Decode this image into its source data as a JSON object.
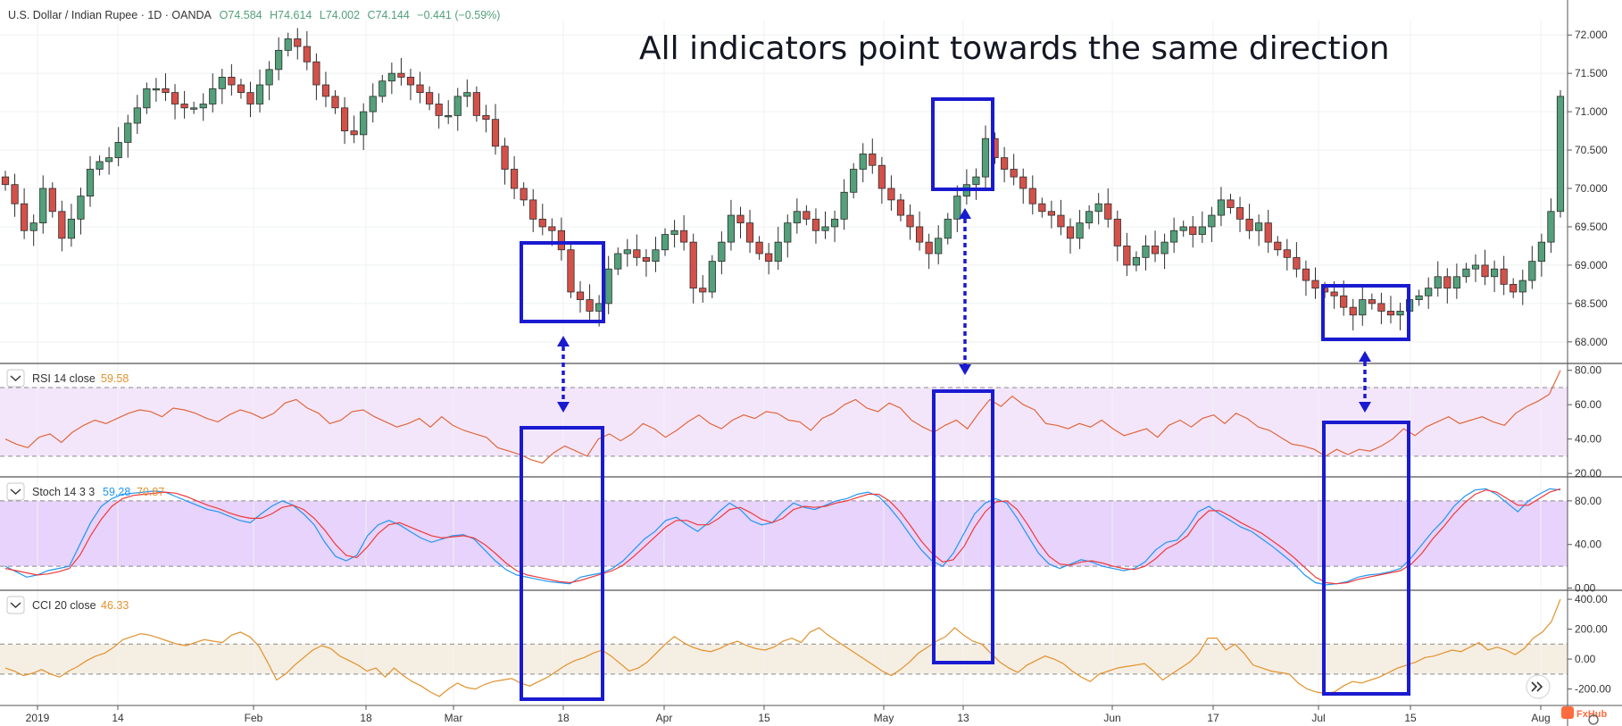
{
  "header": {
    "symbol": "U.S. Dollar / Indian Rupee · 1D · OANDA",
    "o": "O74.584",
    "h": "H74.614",
    "l": "L74.002",
    "c": "C74.144",
    "change": "−0.441 (−0.59%)"
  },
  "annotation": "All indicators point towards the same direction",
  "brand": "FxHub",
  "icons": {
    "scroll": "fast-forward-icon",
    "collapse": "chevron-down-icon",
    "settings": "gear-icon"
  },
  "colors": {
    "up": "#53a07a",
    "down": "#d4514a",
    "highlight": "#1a1ad0",
    "rsi": "#e0673a",
    "stoch_k": "#2196f3",
    "stoch_d": "#f0393a",
    "cci": "#e2922c",
    "rsi_band": "#f3e6fb",
    "stoch_band": "#e7d3fb",
    "cci_band": "#f5eee3"
  },
  "chart_data": [
    {
      "type": "candlestick",
      "title": "U.S. Dollar / Indian Rupee · 1D · OANDA",
      "y_ticks": [
        "72.000",
        "71.500",
        "71.000",
        "70.500",
        "70.000",
        "69.500",
        "69.000",
        "68.500",
        "68.000"
      ],
      "ylim": [
        67.8,
        72.2
      ],
      "x_ticks": [
        "2019",
        "14",
        "Feb",
        "18",
        "Mar",
        "18",
        "Apr",
        "15",
        "May",
        "13",
        "Jun",
        "17",
        "Jul",
        "15",
        "Aug"
      ],
      "grid": true,
      "close_series": [
        70.05,
        69.8,
        69.45,
        69.55,
        70.0,
        69.7,
        69.35,
        69.6,
        69.9,
        70.25,
        70.35,
        70.4,
        70.6,
        70.85,
        71.05,
        71.3,
        71.3,
        71.25,
        71.1,
        71.05,
        71.05,
        71.1,
        71.3,
        71.45,
        71.35,
        71.25,
        71.1,
        71.35,
        71.55,
        71.8,
        71.95,
        71.85,
        71.65,
        71.35,
        71.2,
        71.05,
        70.75,
        70.7,
        71.0,
        71.2,
        71.4,
        71.5,
        71.45,
        71.35,
        71.25,
        71.1,
        70.95,
        70.95,
        71.2,
        71.25,
        70.95,
        70.9,
        70.55,
        70.25,
        70.0,
        69.85,
        69.6,
        69.5,
        69.45,
        69.2,
        68.65,
        68.55,
        68.4,
        68.5,
        68.95,
        69.15,
        69.2,
        69.1,
        69.05,
        69.2,
        69.4,
        69.45,
        69.3,
        68.7,
        68.65,
        69.05,
        69.3,
        69.65,
        69.55,
        69.3,
        69.15,
        69.05,
        69.3,
        69.55,
        69.7,
        69.6,
        69.45,
        69.5,
        69.6,
        69.95,
        70.25,
        70.45,
        70.3,
        70.0,
        69.85,
        69.65,
        69.5,
        69.3,
        69.15,
        69.35,
        69.6,
        69.9,
        70.05,
        70.15,
        70.65,
        70.4,
        70.25,
        70.15,
        70.0,
        69.8,
        69.7,
        69.65,
        69.5,
        69.35,
        69.55,
        69.7,
        69.8,
        69.6,
        69.25,
        69.0,
        69.1,
        69.25,
        69.15,
        69.3,
        69.45,
        69.5,
        69.4,
        69.5,
        69.65,
        69.85,
        69.75,
        69.6,
        69.45,
        69.55,
        69.3,
        69.2,
        69.1,
        68.95,
        68.8,
        68.7,
        68.65,
        68.6,
        68.45,
        68.35,
        68.55,
        68.5,
        68.4,
        68.35,
        68.4,
        68.55,
        68.6,
        68.7,
        68.85,
        68.7,
        68.85,
        68.95,
        69.0,
        68.85,
        68.95,
        68.75,
        68.65,
        68.8,
        69.05,
        69.3,
        69.7,
        71.2
      ],
      "annotations": [
        "All indicators point towards the same direction"
      ]
    },
    {
      "type": "line",
      "title": "RSI 14 close",
      "value_label": "59.58",
      "y_ticks": [
        "80.00",
        "60.00",
        "40.00",
        "20.00"
      ],
      "ylim": [
        18,
        84
      ],
      "bands": [
        30,
        70
      ],
      "series": [
        {
          "values": [
            40.0,
            37.0,
            35.0,
            41.0,
            43.0,
            38.0,
            44.0,
            48.0,
            51.0,
            49.0,
            52.0,
            55.0,
            57.0,
            56.0,
            53.0,
            58.0,
            57.0,
            55.0,
            52.0,
            50.0,
            54.0,
            57.0,
            55.0,
            52.0,
            55.0,
            61.0,
            63.0,
            58.0,
            55.0,
            49.0,
            51.0,
            56.0,
            57.0,
            53.0,
            50.0,
            47.0,
            49.0,
            52.0,
            47.0,
            53.0,
            48.0,
            45.0,
            43.0,
            41.0,
            35.0,
            33.0,
            31.0,
            28.0,
            26.0,
            32.0,
            36.0,
            33.0,
            30.0,
            40.0,
            43.0,
            39.0,
            43.0,
            49.0,
            46.0,
            41.0,
            45.0,
            50.0,
            54.0,
            49.0,
            46.0,
            51.0,
            54.0,
            52.0,
            56.0,
            55.0,
            51.0,
            50.0,
            45.0,
            52.0,
            55.0,
            60.0,
            63.0,
            58.0,
            56.0,
            61.0,
            58.0,
            51.0,
            47.0,
            44.0,
            48.0,
            51.0,
            46.0,
            55.0,
            63.0,
            59.0,
            65.0,
            60.0,
            57.0,
            49.0,
            48.0,
            46.0,
            49.0,
            47.0,
            51.0,
            46.0,
            42.0,
            44.0,
            46.0,
            41.0,
            48.0,
            51.0,
            47.0,
            52.0,
            54.0,
            49.0,
            55.0,
            52.0,
            47.0,
            45.0,
            41.0,
            37.0,
            36.0,
            34.0,
            30.0,
            34.0,
            31.0,
            34.0,
            33.0,
            36.0,
            40.0,
            46.0,
            42.0,
            47.0,
            50.0,
            53.0,
            49.0,
            51.0,
            53.0,
            50.0,
            48.0,
            55.0,
            59.0,
            62.0,
            66.0,
            80.0
          ]
        }
      ]
    },
    {
      "type": "line",
      "title": "Stoch 14 3 3",
      "value_labels": [
        "59.28",
        "70.87"
      ],
      "y_ticks": [
        "80.00",
        "40.00",
        "0.00"
      ],
      "ylim": [
        -2,
        102
      ],
      "bands": [
        20,
        80
      ],
      "series": [
        {
          "values": [
            20.0,
            15.0,
            10.0,
            12.0,
            16.0,
            18.0,
            20.0,
            40.0,
            60.0,
            75.0,
            82.0,
            86.0,
            87.0,
            88.0,
            89.0,
            88.0,
            84.0,
            80.0,
            76.0,
            72.0,
            70.0,
            66.0,
            62.0,
            60.0,
            68.0,
            75.0,
            80.0,
            76.0,
            68.0,
            58.0,
            42.0,
            29.0,
            25.0,
            30.0,
            48.0,
            58.0,
            62.0,
            58.0,
            52.0,
            46.0,
            42.0,
            45.0,
            48.0,
            49.0,
            45.0,
            35.0,
            25.0,
            17.0,
            12.0,
            10.0,
            8.0,
            6.0,
            5.0,
            4.0,
            10.0,
            12.0,
            14.0,
            18.0,
            25.0,
            35.0,
            45.0,
            52.0,
            62.0,
            65.0,
            58.0,
            52.0,
            60.0,
            70.0,
            78.0,
            72.0,
            62.0,
            58.0,
            60.0,
            70.0,
            78.0,
            74.0,
            72.0,
            76.0,
            80.0,
            82.0,
            86.0,
            88.0,
            84.0,
            74.0,
            62.0,
            48.0,
            35.0,
            25.0,
            20.0,
            32.0,
            50.0,
            68.0,
            78.0,
            82.0,
            78.0,
            64.0,
            48.0,
            32.0,
            22.0,
            18.0,
            22.0,
            26.0,
            24.0,
            20.0,
            18.0,
            16.0,
            18.0,
            24.0,
            35.0,
            42.0,
            44.0,
            55.0,
            70.0,
            75.0,
            68.0,
            62.0,
            56.0,
            52.0,
            45.0,
            38.0,
            30.0,
            22.0,
            12.0,
            5.0,
            3.0,
            4.0,
            6.0,
            10.0,
            12.0,
            13.0,
            15.0,
            18.0,
            28.0,
            40.0,
            52.0,
            62.0,
            75.0,
            84.0,
            90.0,
            91.0,
            86.0,
            78.0,
            70.0,
            80.0,
            86.0,
            91.0,
            90.0
          ]
        },
        {
          "values": [
            18.0,
            16.0,
            14.0,
            12.0,
            13.0,
            15.0,
            18.0,
            30.0,
            48.0,
            63.0,
            75.0,
            82.0,
            85.0,
            86.0,
            87.0,
            88.0,
            87.0,
            84.0,
            80.0,
            76.0,
            73.0,
            69.0,
            66.0,
            64.0,
            64.0,
            68.0,
            74.0,
            76.0,
            72.0,
            64.0,
            53.0,
            40.0,
            30.0,
            28.0,
            38.0,
            50.0,
            58.0,
            60.0,
            56.0,
            52.0,
            48.0,
            46.0,
            47.0,
            48.0,
            46.0,
            40.0,
            32.0,
            23.0,
            16.0,
            12.0,
            10.0,
            8.0,
            6.0,
            5.0,
            7.0,
            10.0,
            13.0,
            16.0,
            21.0,
            29.0,
            38.0,
            47.0,
            56.0,
            62.0,
            62.0,
            58.0,
            58.0,
            64.0,
            72.0,
            74.0,
            69.0,
            63.0,
            60.0,
            64.0,
            72.0,
            75.0,
            74.0,
            75.0,
            78.0,
            80.0,
            83.0,
            86.0,
            86.0,
            80.0,
            70.0,
            57.0,
            43.0,
            32.0,
            24.0,
            26.0,
            38.0,
            56.0,
            70.0,
            79.0,
            80.0,
            72.0,
            58.0,
            42.0,
            29.0,
            22.0,
            21.0,
            24.0,
            25.0,
            23.0,
            20.0,
            18.0,
            17.0,
            20.0,
            27.0,
            36.0,
            41.0,
            48.0,
            62.0,
            71.0,
            71.0,
            66.0,
            60.0,
            55.0,
            50.0,
            43.0,
            36.0,
            28.0,
            19.0,
            10.0,
            5.0,
            4.0,
            5.0,
            8.0,
            10.0,
            12.0,
            14.0,
            16.0,
            22.0,
            32.0,
            45.0,
            56.0,
            68.0,
            78.0,
            86.0,
            90.0,
            88.0,
            82.0,
            76.0,
            76.0,
            82.0,
            88.0,
            91.0
          ]
        }
      ]
    },
    {
      "type": "line",
      "title": "CCI 20 close",
      "value_label": "46.33",
      "y_ticks": [
        "400.00",
        "200.00",
        "0.00",
        "-200.00"
      ],
      "ylim": [
        -310,
        460
      ],
      "bands": [
        -100,
        100
      ],
      "series": [
        {
          "values": [
            -60.0,
            -80.0,
            -110.0,
            -95.0,
            -70.0,
            -100.0,
            -120.0,
            -80.0,
            -50.0,
            -10.0,
            20.0,
            40.0,
            80.0,
            130.0,
            150.0,
            170.0,
            160.0,
            140.0,
            120.0,
            100.0,
            90.0,
            110.0,
            130.0,
            120.0,
            110.0,
            160.0,
            180.0,
            150.0,
            90.0,
            -20.0,
            -140.0,
            -100.0,
            -40.0,
            10.0,
            60.0,
            90.0,
            70.0,
            20.0,
            -10.0,
            -40.0,
            -80.0,
            -60.0,
            -120.0,
            -60.0,
            -110.0,
            -150.0,
            -180.0,
            -220.0,
            -250.0,
            -200.0,
            -160.0,
            -190.0,
            -200.0,
            -170.0,
            -150.0,
            -140.0,
            -130.0,
            -160.0,
            -180.0,
            -150.0,
            -120.0,
            -80.0,
            -40.0,
            -10.0,
            10.0,
            40.0,
            60.0,
            20.0,
            -30.0,
            -80.0,
            -60.0,
            -20.0,
            40.0,
            100.0,
            150.0,
            110.0,
            80.0,
            60.0,
            50.0,
            70.0,
            100.0,
            120.0,
            90.0,
            70.0,
            60.0,
            80.0,
            120.0,
            140.0,
            110.0,
            180.0,
            210.0,
            160.0,
            120.0,
            80.0,
            40.0,
            0.0,
            -40.0,
            -80.0,
            -110.0,
            -70.0,
            -20.0,
            40.0,
            80.0,
            120.0,
            150.0,
            210.0,
            160.0,
            120.0,
            100.0,
            40.0,
            -20.0,
            -60.0,
            -90.0,
            -40.0,
            -10.0,
            20.0,
            0.0,
            -30.0,
            -80.0,
            -120.0,
            -150.0,
            -100.0,
            -80.0,
            -60.0,
            -50.0,
            -40.0,
            -30.0,
            -80.0,
            -140.0,
            -100.0,
            -60.0,
            -20.0,
            40.0,
            140.0,
            140.0,
            60.0,
            100.0,
            40.0,
            -40.0,
            -60.0,
            -80.0,
            -90.0,
            -100.0,
            -160.0,
            -200.0,
            -220.0,
            -230.0,
            -220.0,
            -180.0,
            -150.0,
            -160.0,
            -140.0,
            -120.0,
            -90.0,
            -60.0,
            -40.0,
            -20.0,
            10.0,
            20.0,
            40.0,
            60.0,
            50.0,
            80.0,
            110.0,
            60.0,
            80.0,
            60.0,
            30.0,
            70.0,
            140.0,
            180.0,
            250.0,
            400.0
          ]
        }
      ]
    }
  ]
}
